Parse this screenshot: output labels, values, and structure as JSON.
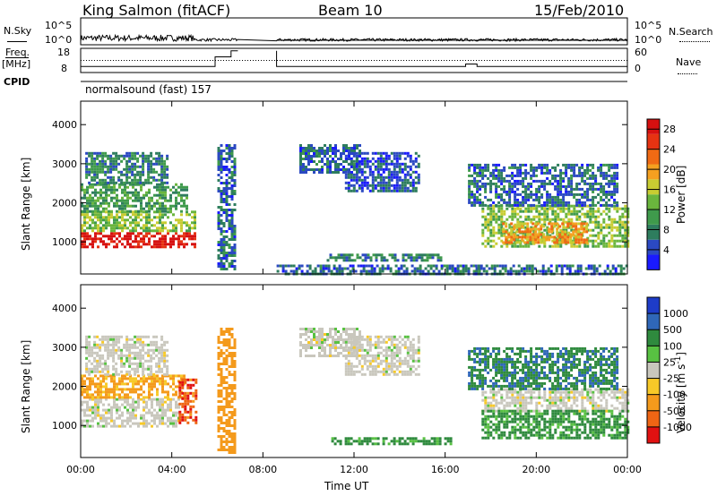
{
  "header": {
    "station": "King Salmon (fitACF)",
    "beam": "Beam 10",
    "date": "15/Feb/2010"
  },
  "strips": {
    "nsky_label": "N.Sky",
    "nsky_ticks": [
      "10^5",
      "10^0"
    ],
    "nsearch_label": "N.Search",
    "nsearch_ticks": [
      "10^5",
      "10^0"
    ],
    "freq_label_line1": "Freq.",
    "freq_label_line2": "[MHz]",
    "freq_ticks": [
      "18",
      "8"
    ],
    "nave_label": "Nave",
    "nave_ticks": [
      "60",
      "0"
    ],
    "cpid_label": "CPID",
    "cpid_value": "normalsound (fast) 157"
  },
  "colors": {
    "power_scale": [
      "#1a1aff",
      "#2b49c2",
      "#2e7d5e",
      "#3f9a4c",
      "#6ab53d",
      "#c8cc32",
      "#f5a020",
      "#f06a14",
      "#e63312",
      "#d61010"
    ],
    "velocity_scale": [
      "#1e3cc8",
      "#2f67b8",
      "#2f8a3e",
      "#58c142",
      "#c9c7bd",
      "#f7c928",
      "#f49a1c",
      "#ef6514",
      "#e11111"
    ],
    "ground_scatter": "#bdbab0"
  },
  "chart_data": [
    {
      "type": "heatmap",
      "panel": "power",
      "ylabel": "Slant Range [km]",
      "xlabel": "",
      "x_ticks": [
        "00:00",
        "04:00",
        "08:00",
        "12:00",
        "16:00",
        "20:00",
        "00:00"
      ],
      "y_ticks": [
        "1000",
        "2000",
        "3000",
        "4000"
      ],
      "xlim_hours": [
        0,
        24
      ],
      "ylim_km": [
        180,
        4600
      ],
      "colorbar": {
        "label": "Power [dB]",
        "ticks": [
          "4",
          "8",
          "12",
          "16",
          "20",
          "24",
          "28"
        ],
        "range": [
          0,
          30
        ]
      },
      "regions": [
        {
          "t0": 0.0,
          "t1": 5.0,
          "r0": 900,
          "r1": 1250,
          "level": 28
        },
        {
          "t0": 0.0,
          "t1": 5.0,
          "r0": 1300,
          "r1": 1800,
          "level": 14
        },
        {
          "t0": 0.0,
          "t1": 4.7,
          "r0": 1800,
          "r1": 2500,
          "level": 10
        },
        {
          "t0": 0.2,
          "t1": 3.8,
          "r0": 2500,
          "r1": 3300,
          "level": 8
        },
        {
          "t0": 6.0,
          "t1": 6.8,
          "r0": 300,
          "r1": 3500,
          "level": 6
        },
        {
          "t0": 9.6,
          "t1": 12.3,
          "r0": 2800,
          "r1": 3500,
          "level": 6
        },
        {
          "t0": 11.6,
          "t1": 14.9,
          "r0": 2300,
          "r1": 3300,
          "level": 5
        },
        {
          "t0": 10.8,
          "t1": 15.8,
          "r0": 500,
          "r1": 700,
          "level": 8
        },
        {
          "t0": 8.6,
          "t1": 17.5,
          "r0": 180,
          "r1": 420,
          "level": 6
        },
        {
          "t0": 17.3,
          "t1": 24.0,
          "r0": 180,
          "r1": 420,
          "level": 6
        },
        {
          "t0": 17.6,
          "t1": 24.0,
          "r0": 900,
          "r1": 1950,
          "level": 14
        },
        {
          "t0": 18.5,
          "t1": 22.2,
          "r0": 1000,
          "r1": 1500,
          "level": 20
        },
        {
          "t0": 17.0,
          "t1": 23.6,
          "r0": 1950,
          "r1": 3000,
          "level": 6
        }
      ]
    },
    {
      "type": "heatmap",
      "panel": "velocity",
      "ylabel": "Slant Range [km]",
      "xlabel": "Time UT",
      "x_ticks": [
        "00:00",
        "04:00",
        "08:00",
        "12:00",
        "16:00",
        "20:00",
        "00:00"
      ],
      "y_ticks": [
        "1000",
        "2000",
        "3000",
        "4000"
      ],
      "xlim_hours": [
        0,
        24
      ],
      "ylim_km": [
        180,
        4600
      ],
      "colorbar": {
        "label": "Velocity [m s^-1]",
        "ticks": [
          "1000",
          "500",
          "100",
          "25",
          "-25",
          "-100",
          "-500",
          "-1000"
        ],
        "range": [
          -1000,
          1000
        ]
      },
      "regions": [
        {
          "t0": 0.0,
          "t1": 4.3,
          "r0": 1000,
          "r1": 1700,
          "level": 0
        },
        {
          "t0": 0.0,
          "t1": 4.5,
          "r0": 1700,
          "r1": 2300,
          "level": -150
        },
        {
          "t0": 0.2,
          "t1": 3.8,
          "r0": 2300,
          "r1": 3300,
          "level": 0
        },
        {
          "t0": 4.3,
          "t1": 5.1,
          "r0": 1100,
          "r1": 2200,
          "level": -900
        },
        {
          "t0": 6.0,
          "t1": 6.8,
          "r0": 300,
          "r1": 3500,
          "level": -300
        },
        {
          "t0": 9.6,
          "t1": 12.3,
          "r0": 2800,
          "r1": 3500,
          "level": 0
        },
        {
          "t0": 11.6,
          "t1": 14.9,
          "r0": 2300,
          "r1": 3300,
          "level": 0
        },
        {
          "t0": 11.0,
          "t1": 16.2,
          "r0": 500,
          "r1": 700,
          "level": 150
        },
        {
          "t0": 17.6,
          "t1": 24.0,
          "r0": 1400,
          "r1": 1950,
          "level": 0
        },
        {
          "t0": 17.6,
          "t1": 24.0,
          "r0": 700,
          "r1": 1400,
          "level": 150
        },
        {
          "t0": 17.0,
          "t1": 23.6,
          "r0": 1950,
          "r1": 3000,
          "level": 400
        }
      ]
    }
  ]
}
